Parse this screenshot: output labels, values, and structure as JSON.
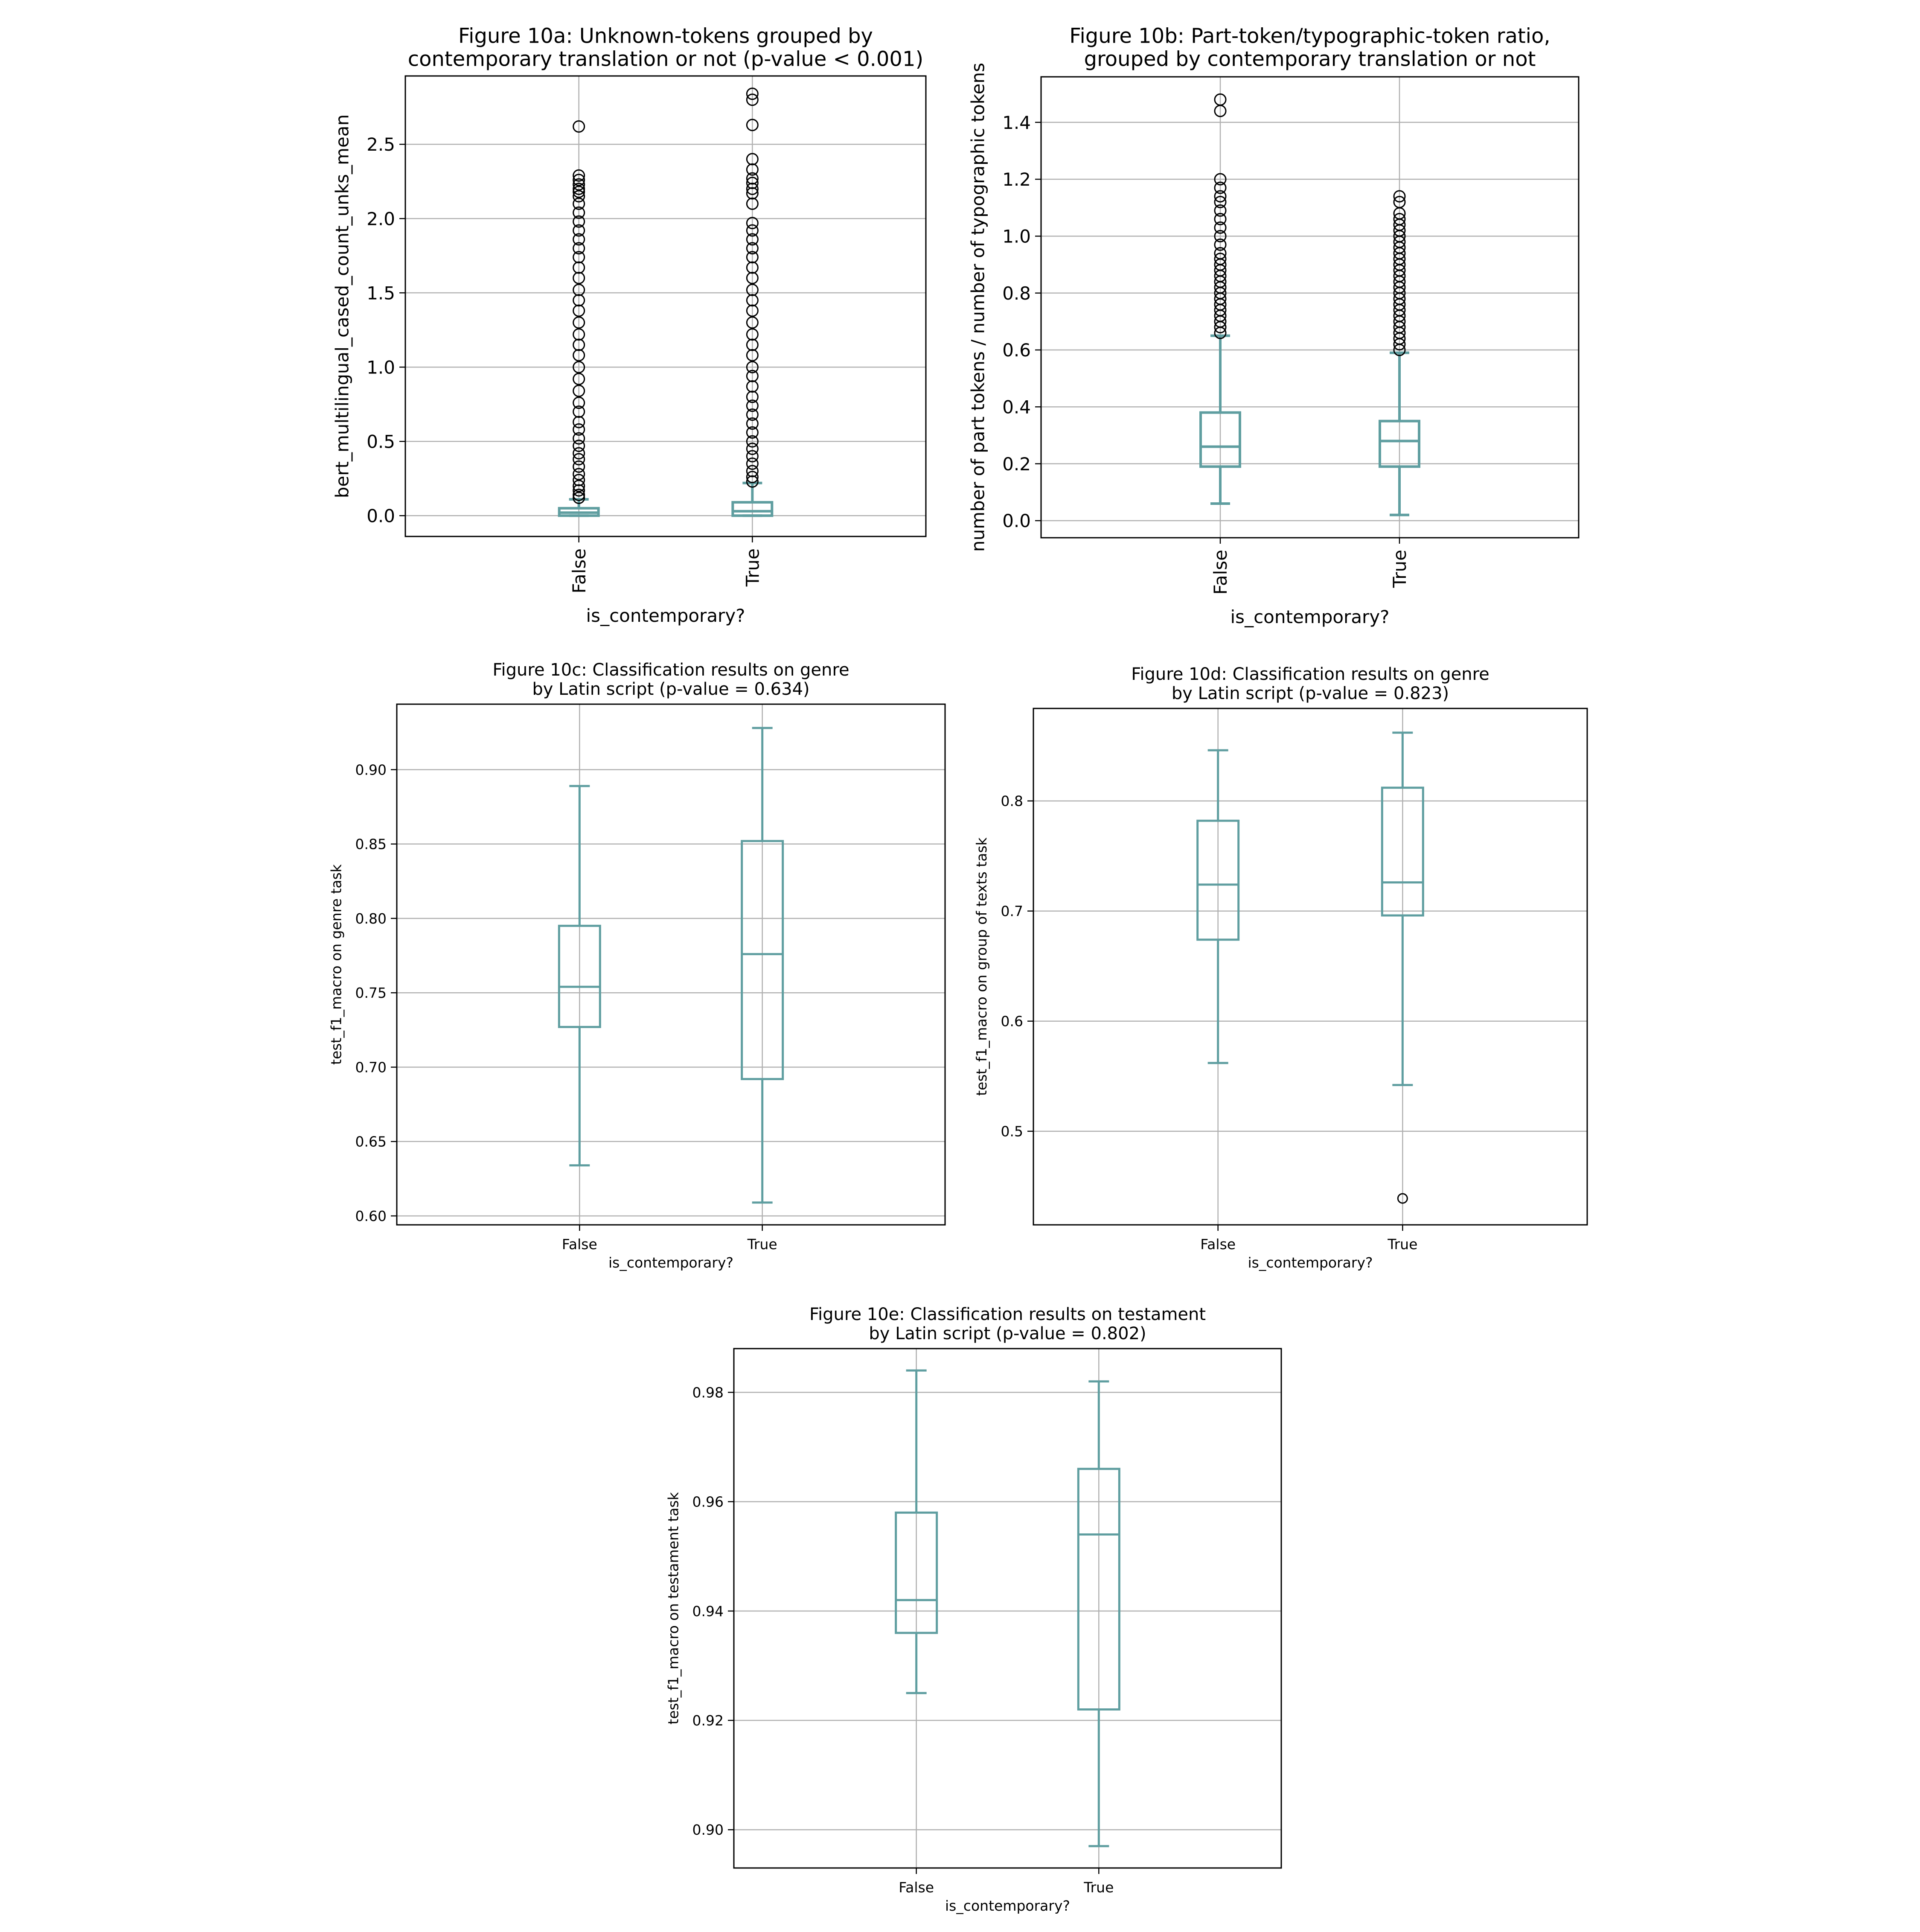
{
  "chart_data": [
    {
      "type": "box",
      "title": "Figure 10a: Unknown-tokens grouped by\ncontemporary translation or not (p-value < 0.001)",
      "xlabel": "is_contemporary?",
      "ylabel": "bert_multilingual_cased_count_unks_mean",
      "categories": [
        "False",
        "True"
      ],
      "ylim": [
        -0.14,
        2.96
      ],
      "yticks": [
        0.0,
        0.5,
        1.0,
        1.5,
        2.0,
        2.5
      ],
      "tick_labels": [
        "0.0",
        "0.5",
        "1.0",
        "1.5",
        "2.0",
        "2.5"
      ],
      "tick_rotation": "vertical",
      "color": "#5f9ea0",
      "boxes": [
        {
          "category": "False",
          "whisker_low": 0.0,
          "q1": 0.0,
          "median": 0.02,
          "q3": 0.05,
          "whisker_high": 0.11,
          "outliers": [
            0.12,
            0.14,
            0.17,
            0.2,
            0.24,
            0.28,
            0.33,
            0.38,
            0.42,
            0.47,
            0.52,
            0.58,
            0.63,
            0.7,
            0.76,
            0.84,
            0.92,
            1.0,
            1.08,
            1.15,
            1.22,
            1.3,
            1.38,
            1.45,
            1.52,
            1.6,
            1.67,
            1.74,
            1.8,
            1.86,
            1.92,
            1.98,
            2.04,
            2.1,
            2.15,
            2.18,
            2.2,
            2.23,
            2.26,
            2.29,
            2.62
          ]
        },
        {
          "category": "True",
          "whisker_low": 0.0,
          "q1": 0.0,
          "median": 0.03,
          "q3": 0.09,
          "whisker_high": 0.22,
          "outliers": [
            0.23,
            0.26,
            0.3,
            0.35,
            0.4,
            0.45,
            0.5,
            0.56,
            0.62,
            0.68,
            0.74,
            0.8,
            0.87,
            0.94,
            1.0,
            1.08,
            1.15,
            1.22,
            1.3,
            1.38,
            1.45,
            1.52,
            1.6,
            1.67,
            1.74,
            1.8,
            1.86,
            1.92,
            1.97,
            2.1,
            2.17,
            2.2,
            2.24,
            2.27,
            2.33,
            2.4,
            2.63,
            2.8,
            2.84
          ]
        }
      ]
    },
    {
      "type": "box",
      "title": "Figure 10b: Part-token/typographic-token ratio,\ngrouped by contemporary translation or not",
      "xlabel": "is_contemporary?",
      "ylabel": "number of part tokens / number of typographic tokens",
      "categories": [
        "False",
        "True"
      ],
      "ylim": [
        -0.06,
        1.56
      ],
      "yticks": [
        0.0,
        0.2,
        0.4,
        0.6,
        0.8,
        1.0,
        1.2,
        1.4
      ],
      "tick_labels": [
        "0.0",
        "0.2",
        "0.4",
        "0.6",
        "0.8",
        "1.0",
        "1.2",
        "1.4"
      ],
      "tick_rotation": "vertical",
      "color": "#5f9ea0",
      "boxes": [
        {
          "category": "False",
          "whisker_low": 0.06,
          "q1": 0.19,
          "median": 0.26,
          "q3": 0.38,
          "whisker_high": 0.65,
          "outliers": [
            0.66,
            0.68,
            0.7,
            0.72,
            0.74,
            0.76,
            0.78,
            0.8,
            0.82,
            0.84,
            0.86,
            0.88,
            0.9,
            0.92,
            0.94,
            0.97,
            1.0,
            1.03,
            1.06,
            1.09,
            1.12,
            1.14,
            1.17,
            1.2,
            1.44,
            1.48
          ]
        },
        {
          "category": "True",
          "whisker_low": 0.02,
          "q1": 0.19,
          "median": 0.28,
          "q3": 0.35,
          "whisker_high": 0.59,
          "outliers": [
            0.6,
            0.62,
            0.64,
            0.66,
            0.68,
            0.7,
            0.72,
            0.74,
            0.76,
            0.78,
            0.8,
            0.82,
            0.84,
            0.86,
            0.88,
            0.9,
            0.92,
            0.94,
            0.96,
            0.98,
            1.0,
            1.02,
            1.04,
            1.06,
            1.08,
            1.12,
            1.14
          ]
        }
      ]
    },
    {
      "type": "box",
      "title": "Figure 10c: Classification results on genre\nby Latin script (p-value = 0.634)",
      "xlabel": "is_contemporary?",
      "ylabel": "test_f1_macro on genre task",
      "categories": [
        "False",
        "True"
      ],
      "ylim": [
        0.594,
        0.944
      ],
      "yticks": [
        0.6,
        0.65,
        0.7,
        0.75,
        0.8,
        0.85,
        0.9
      ],
      "tick_labels": [
        "0.60",
        "0.65",
        "0.70",
        "0.75",
        "0.80",
        "0.85",
        "0.90"
      ],
      "tick_rotation": "horizontal",
      "color": "#5f9ea0",
      "boxes": [
        {
          "category": "False",
          "whisker_low": 0.634,
          "q1": 0.727,
          "median": 0.754,
          "q3": 0.795,
          "whisker_high": 0.889,
          "outliers": []
        },
        {
          "category": "True",
          "whisker_low": 0.609,
          "q1": 0.692,
          "median": 0.776,
          "q3": 0.852,
          "whisker_high": 0.928,
          "outliers": []
        }
      ]
    },
    {
      "type": "box",
      "title": "Figure 10d: Classification results on genre\nby Latin script (p-value = 0.823)",
      "xlabel": "is_contemporary?",
      "ylabel": "test_f1_macro on group of texts task",
      "categories": [
        "False",
        "True"
      ],
      "ylim": [
        0.415,
        0.884
      ],
      "yticks": [
        0.5,
        0.6,
        0.7,
        0.8
      ],
      "tick_labels": [
        "0.5",
        "0.6",
        "0.7",
        "0.8"
      ],
      "tick_rotation": "horizontal",
      "color": "#5f9ea0",
      "boxes": [
        {
          "category": "False",
          "whisker_low": 0.562,
          "q1": 0.674,
          "median": 0.724,
          "q3": 0.782,
          "whisker_high": 0.846,
          "outliers": []
        },
        {
          "category": "True",
          "whisker_low": 0.542,
          "q1": 0.696,
          "median": 0.726,
          "q3": 0.812,
          "whisker_high": 0.862,
          "outliers": [
            0.439
          ]
        }
      ]
    },
    {
      "type": "box",
      "title": "Figure 10e: Classification results on testament\nby Latin script (p-value = 0.802)",
      "xlabel": "is_contemporary?",
      "ylabel": "test_f1_macro on testament task",
      "categories": [
        "False",
        "True"
      ],
      "ylim": [
        0.893,
        0.988
      ],
      "yticks": [
        0.9,
        0.92,
        0.94,
        0.96,
        0.98
      ],
      "tick_labels": [
        "0.90",
        "0.92",
        "0.94",
        "0.96",
        "0.98"
      ],
      "tick_rotation": "horizontal",
      "color": "#5f9ea0",
      "boxes": [
        {
          "category": "False",
          "whisker_low": 0.925,
          "q1": 0.936,
          "median": 0.942,
          "q3": 0.958,
          "whisker_high": 0.984,
          "outliers": []
        },
        {
          "category": "True",
          "whisker_low": 0.897,
          "q1": 0.922,
          "median": 0.954,
          "q3": 0.966,
          "whisker_high": 0.982,
          "outliers": []
        }
      ]
    }
  ]
}
